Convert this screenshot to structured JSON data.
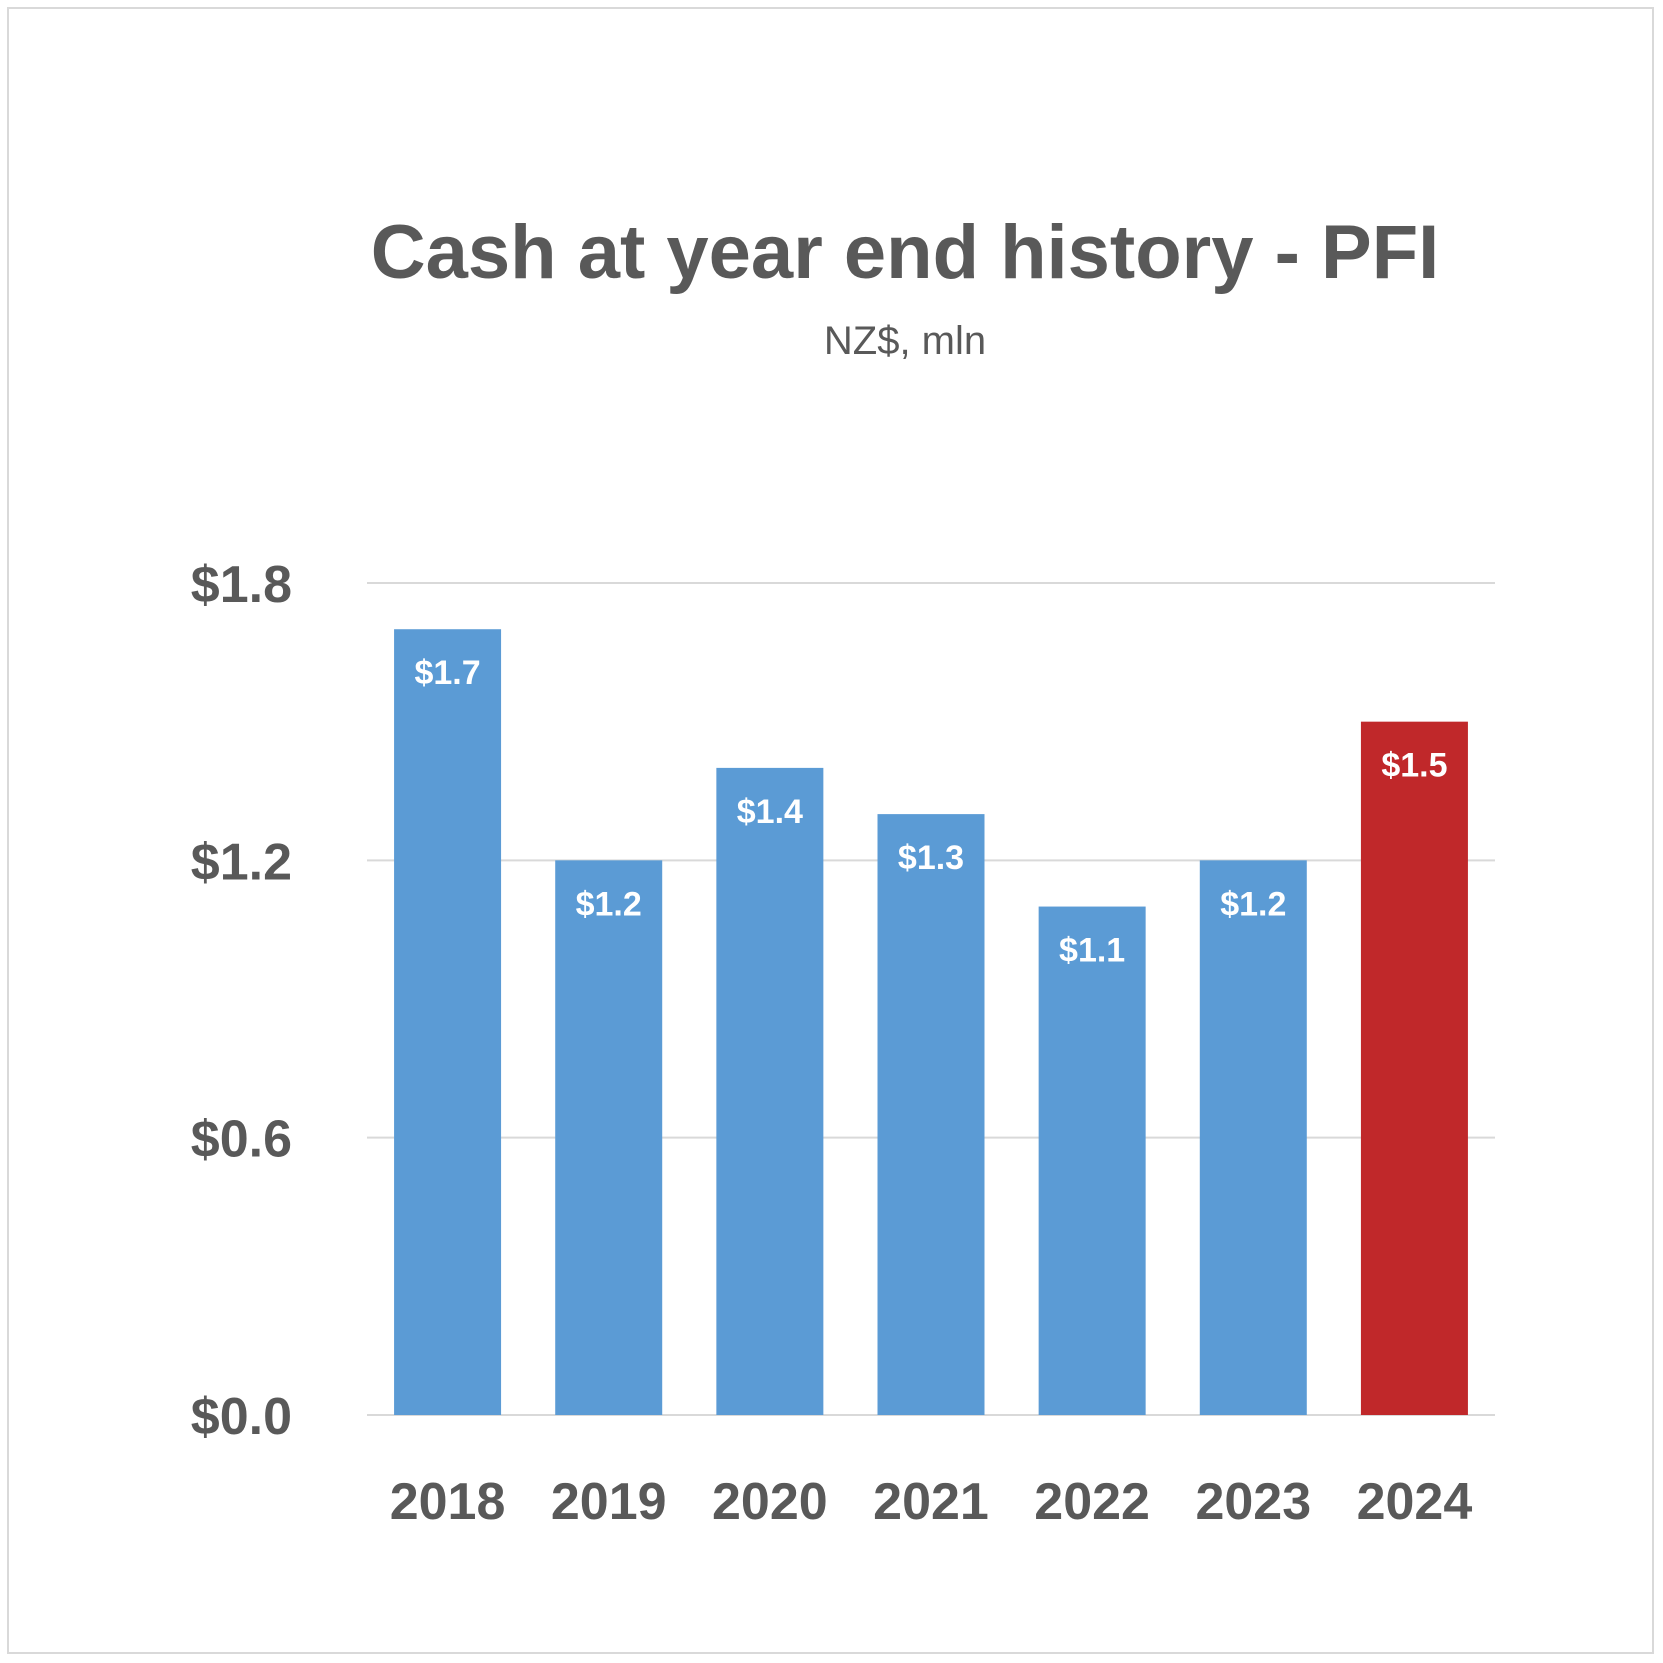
{
  "chart_data": {
    "type": "bar",
    "title": "Cash at year end history - PFI",
    "subtitle": "NZ$, mln",
    "xlabel": "",
    "ylabel": "",
    "categories": [
      "2018",
      "2019",
      "2020",
      "2021",
      "2022",
      "2023",
      "2024"
    ],
    "values": [
      1.7,
      1.2,
      1.4,
      1.3,
      1.1,
      1.2,
      1.5
    ],
    "data_labels": [
      "$1.7",
      "$1.2",
      "$1.4",
      "$1.3",
      "$1.1",
      "$1.2",
      "$1.5"
    ],
    "ylim": [
      0,
      1.8
    ],
    "y_ticks": [
      0,
      0.6,
      1.2,
      1.8
    ],
    "y_tick_labels": [
      "$0.0",
      "$0.6",
      "$1.2",
      "$1.8"
    ],
    "grid": true,
    "legend": "none",
    "bar_colors": [
      "#5b9bd5",
      "#5b9bd5",
      "#5b9bd5",
      "#5b9bd5",
      "#5b9bd5",
      "#5b9bd5",
      "#c0282a"
    ]
  }
}
